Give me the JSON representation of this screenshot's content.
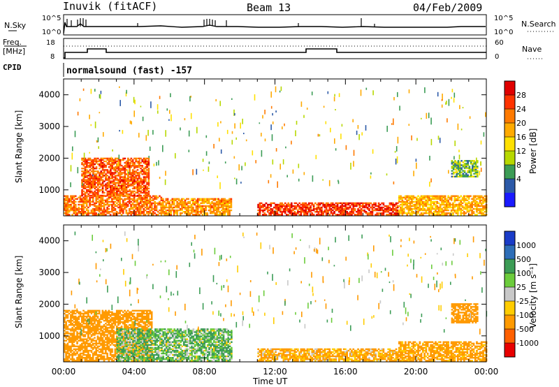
{
  "header": {
    "station": "Inuvik (fitACF)",
    "beam": "Beam 13",
    "date": "04/Feb/2009"
  },
  "top_panels": {
    "nsky_label": "N.Sky",
    "nsky_ticks": [
      "10^5",
      "10^0"
    ],
    "nsearch_label": "N.Search",
    "nsearch_ticks": [
      "10^5",
      "10^0"
    ],
    "freq_label_1": "Freq.",
    "freq_label_2": "[MHz]",
    "freq_ticks": [
      "18",
      "8"
    ],
    "nave_label": "Nave",
    "nave_ticks": [
      "60",
      "0"
    ],
    "cpid_label": "CPID",
    "cpid_text": "normalsound (fast) -157"
  },
  "axes": {
    "ylabel": "Slant Range [km]",
    "xlabel": "Time UT",
    "y_ticks": [
      "1000",
      "2000",
      "3000",
      "4000"
    ],
    "x_ticks": [
      "00:00",
      "04:00",
      "08:00",
      "12:00",
      "16:00",
      "20:00",
      "00:00"
    ]
  },
  "colorbars": {
    "power": {
      "label": "Power [dB]",
      "ticks": [
        "28",
        "24",
        "20",
        "16",
        "12",
        "8",
        "4"
      ],
      "colors": [
        "#e00000",
        "#ff3300",
        "#ff7a00",
        "#ffaa00",
        "#ffe000",
        "#b7d800",
        "#3c9c56",
        "#2c5aa8",
        "#1a1aff"
      ]
    },
    "velocity": {
      "label": "Velocity [m s⁻¹]",
      "ticks": [
        "1000",
        "500",
        "100",
        "25",
        "-25",
        "-100",
        "-500",
        "-1000"
      ],
      "colors": [
        "#1a3cc8",
        "#2e6eb8",
        "#3c9c56",
        "#6ccc3c",
        "#c8c8c8",
        "#ffcc00",
        "#ff9a00",
        "#ff6000",
        "#e80000"
      ]
    }
  },
  "chart_data": [
    {
      "type": "heatmap",
      "name": "Power",
      "x_range": [
        "00:00",
        "24:00"
      ],
      "y_range_km": [
        180,
        4500
      ],
      "colorbar": "Power [dB]",
      "regions": [
        {
          "t0": 0.0,
          "t1": 5.5,
          "r0": 200,
          "r1": 800,
          "value_db": 24
        },
        {
          "t0": 1.0,
          "t1": 4.8,
          "r0": 800,
          "r1": 2000,
          "value_db": 26
        },
        {
          "t0": 5.5,
          "t1": 9.5,
          "r0": 200,
          "r1": 700,
          "value_db": 22
        },
        {
          "t0": 11.0,
          "t1": 19.0,
          "r0": 200,
          "r1": 600,
          "value_db": 28
        },
        {
          "t0": 19.0,
          "t1": 24.0,
          "r0": 200,
          "r1": 800,
          "value_db": 20
        },
        {
          "t0": 22.0,
          "t1": 23.5,
          "r0": 1400,
          "r1": 1900,
          "value_db": 10
        }
      ]
    },
    {
      "type": "heatmap",
      "name": "Velocity",
      "x_range": [
        "00:00",
        "24:00"
      ],
      "y_range_km": [
        180,
        4500
      ],
      "colorbar": "Velocity [m s-1]",
      "regions": [
        {
          "t0": 0.0,
          "t1": 5.0,
          "r0": 200,
          "r1": 1800,
          "value_ms": -300
        },
        {
          "t0": 3.0,
          "t1": 9.5,
          "r0": 200,
          "r1": 1200,
          "value_ms": 100
        },
        {
          "t0": 11.0,
          "t1": 19.0,
          "r0": 200,
          "r1": 600,
          "value_ms": -150
        },
        {
          "t0": 19.0,
          "t1": 24.0,
          "r0": 200,
          "r1": 800,
          "value_ms": -200
        },
        {
          "t0": 22.0,
          "t1": 23.5,
          "r0": 1400,
          "r1": 2000,
          "value_ms": -300
        }
      ]
    }
  ]
}
